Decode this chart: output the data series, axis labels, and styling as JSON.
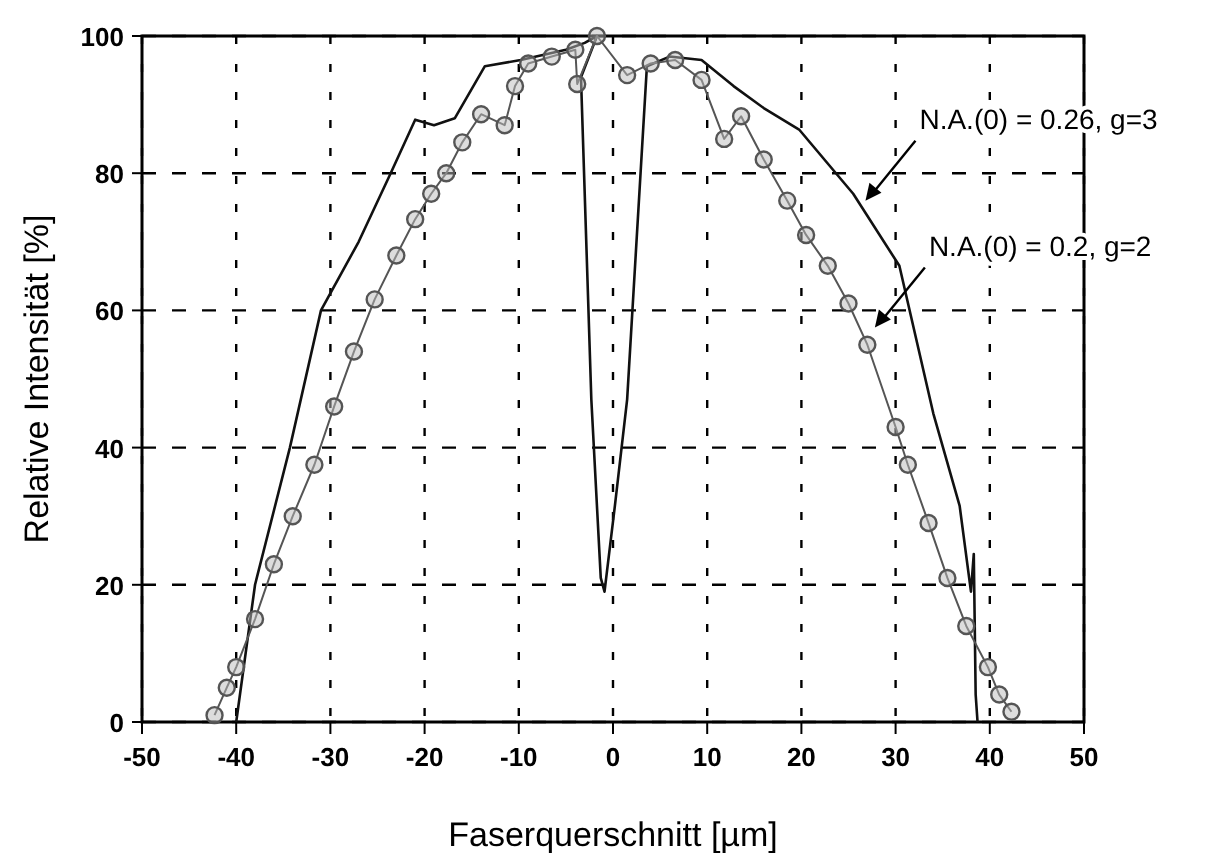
{
  "chart_data": {
    "type": "line",
    "xlabel": "Faserquerschnitt [µm]",
    "ylabel": "Relative Intensität [%]",
    "xlim": [
      -50,
      50
    ],
    "xticks": [
      -50,
      -40,
      -30,
      -20,
      -10,
      0,
      10,
      20,
      30,
      40,
      50
    ],
    "ylim": [
      0,
      100
    ],
    "yticks": [
      0,
      20,
      40,
      60,
      80,
      100
    ],
    "grid": true,
    "series": [
      {
        "color": "#111111",
        "marker": "none",
        "line_style": "solid",
        "x": [
          -40,
          -38,
          -34.3,
          -31,
          -27,
          -23.6,
          -21,
          -19,
          -16.8,
          -13.6,
          -9.8,
          -5,
          -3,
          -1.7,
          -3.4,
          -2.3,
          -1.3,
          -0.9,
          0.2,
          1.5,
          3.6,
          6,
          9.4,
          12.8,
          16,
          19.8,
          25.5,
          30.4,
          34,
          36.8,
          38,
          38.3,
          38.5,
          38.7
        ],
        "values": [
          0,
          20,
          40,
          60,
          70,
          80,
          87.8,
          87,
          88,
          95.6,
          96.5,
          98,
          99,
          100,
          94,
          47,
          21,
          19,
          31.5,
          47,
          95.6,
          97,
          96.5,
          92.7,
          89.5,
          86.3,
          77,
          66.5,
          45,
          31.5,
          19,
          24.5,
          4,
          0
        ]
      },
      {
        "color": "#555555",
        "marker": "circle",
        "line_style": "solid",
        "x": [
          -42.3,
          -41,
          -40,
          -38,
          -36,
          -34,
          -31.7,
          -29.6,
          -27.5,
          -25.3,
          -23,
          -21,
          -19.3,
          -17.7,
          -16,
          -14,
          -11.5,
          -10.4,
          -9,
          -6.5,
          -4,
          -3.8,
          -1.7,
          1.5,
          4,
          6.6,
          9.4,
          11.8,
          13.6,
          16,
          18.5,
          20.5,
          22.8,
          25,
          27,
          30,
          31.3,
          33.5,
          35.5,
          37.5,
          39.8,
          41,
          42.3
        ],
        "values": [
          1,
          5,
          8,
          15,
          23,
          30,
          37.5,
          46,
          54,
          61.6,
          68,
          73.3,
          77,
          80,
          84.5,
          88.6,
          87,
          92.7,
          96,
          97,
          98,
          93,
          100,
          94.3,
          96,
          96.5,
          93.6,
          85,
          88.3,
          82,
          76,
          71,
          66.5,
          61,
          55,
          43,
          37.5,
          29,
          21,
          14,
          8,
          4,
          1.5
        ]
      }
    ],
    "annotations": [
      {
        "text": "N.A.(0) = 0.26, g=3",
        "x": 26.8,
        "y": 76
      },
      {
        "text": "N.A.(0) = 0.2, g=2",
        "x": 27.8,
        "y": 57.5
      }
    ]
  }
}
